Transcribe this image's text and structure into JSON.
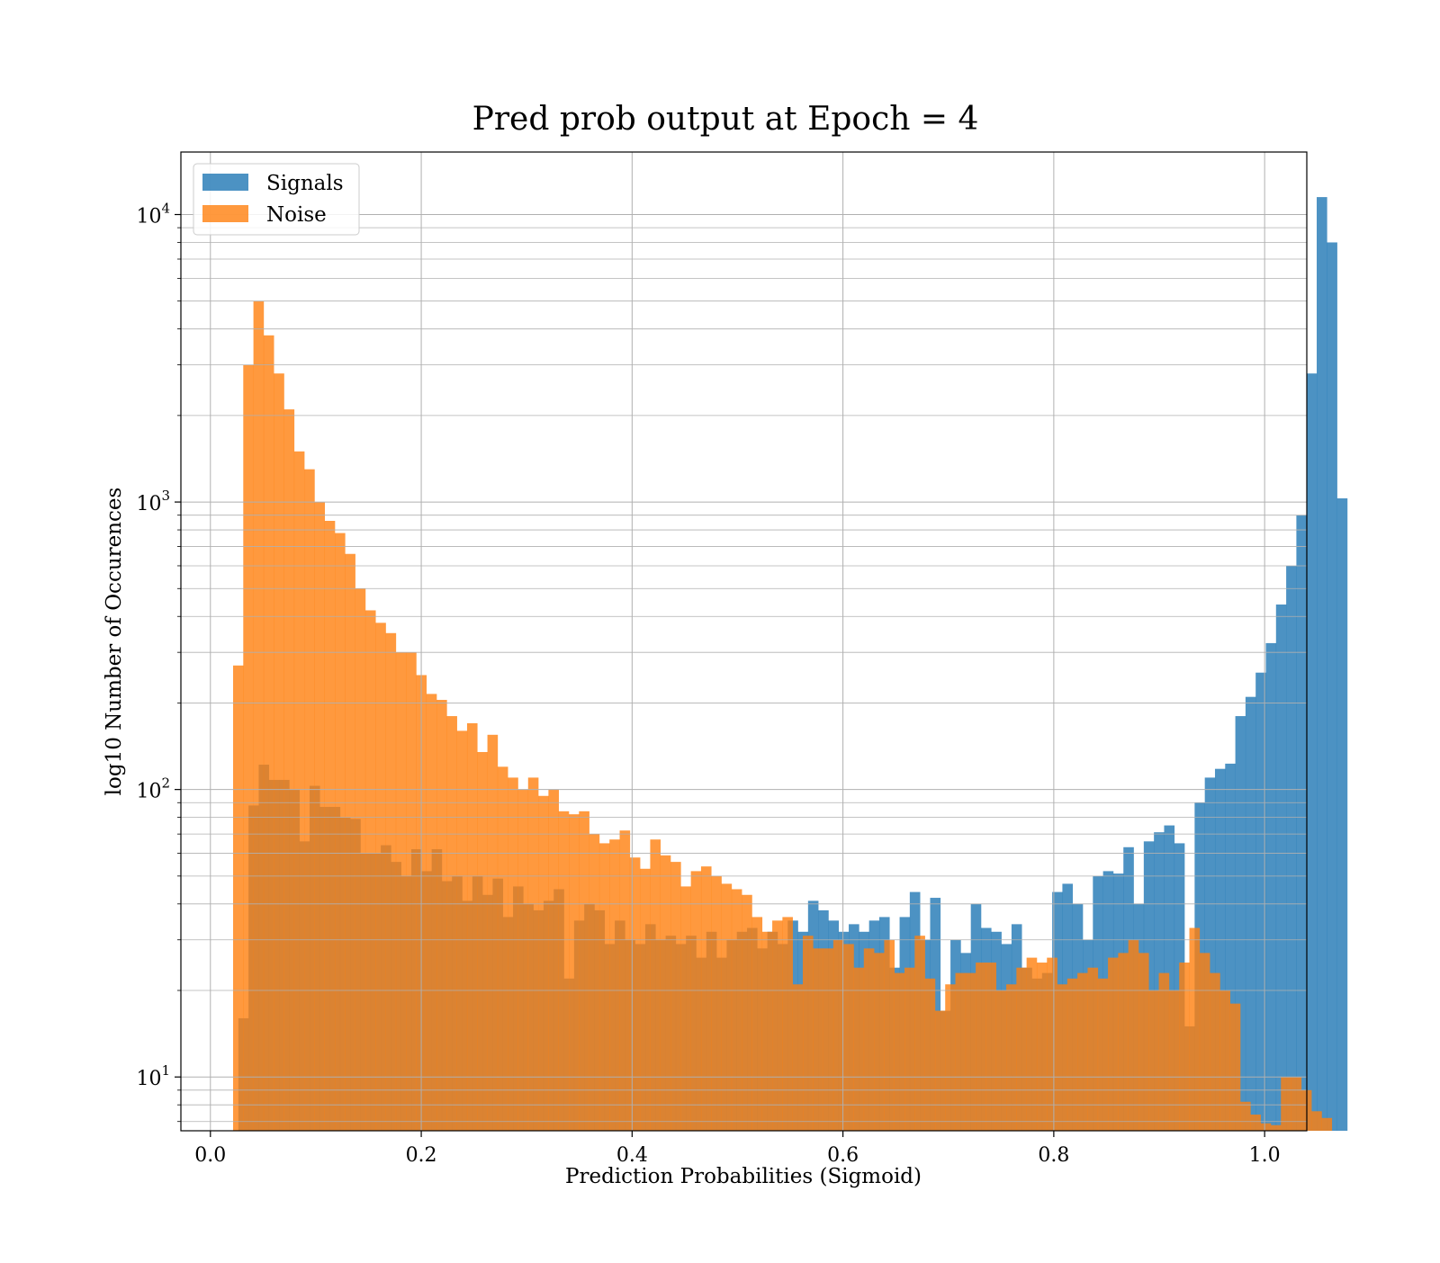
{
  "chart_data": {
    "type": "bar",
    "title": "Pred prob output at Epoch = 4",
    "xlabel": "Prediction Probabilities (Sigmoid)",
    "ylabel": "log10 Number of Occurences",
    "xlim": [
      -0.028,
      1.04
    ],
    "ylim": [
      6.5,
      16500
    ],
    "yscale": "log",
    "grid": true,
    "legend_position": "upper left",
    "xticks": [
      0.0,
      0.2,
      0.4,
      0.6,
      0.8,
      1.0
    ],
    "xtick_labels": [
      "0.0",
      "0.2",
      "0.4",
      "0.6",
      "0.8",
      "1.0"
    ],
    "yticks": [
      10,
      100,
      1000,
      10000
    ],
    "ytick_labels": [
      {
        "base": "10",
        "exp": "1"
      },
      {
        "base": "10",
        "exp": "2"
      },
      {
        "base": "10",
        "exp": "3"
      },
      {
        "base": "10",
        "exp": "4"
      }
    ],
    "series": [
      {
        "name": "Signals",
        "color": "#1f77b4",
        "opacity": 0.8,
        "bin_start": 0.0265,
        "bin_width": 0.00965,
        "values": [
          16,
          88,
          122,
          108,
          108,
          100,
          66,
          103,
          87,
          87,
          80,
          79,
          60,
          60,
          64,
          56,
          50,
          62,
          52,
          62,
          48,
          50,
          41,
          50,
          43,
          49,
          36,
          46,
          40,
          38,
          41,
          45,
          22,
          35,
          40,
          38,
          29,
          35,
          30,
          29,
          34,
          30,
          31,
          29,
          31,
          26,
          32,
          26,
          30,
          32,
          33,
          28,
          32,
          29,
          35,
          32,
          41,
          38,
          35,
          32,
          34,
          32,
          35,
          36,
          24,
          36,
          44,
          30,
          42,
          17,
          30,
          27,
          40,
          33,
          32,
          29,
          34,
          24,
          22,
          23,
          44,
          47,
          40,
          30,
          50,
          52,
          51,
          63,
          40,
          66,
          71,
          75,
          65,
          15,
          90,
          110,
          118,
          123,
          180,
          210,
          255,
          323,
          440,
          600,
          900,
          2800,
          11500,
          8000,
          1030
        ]
      },
      {
        "name": "Noise",
        "color": "#ff7f0e",
        "opacity": 0.8,
        "bin_start": 0.0215,
        "bin_width": 0.00965,
        "values": [
          270,
          3000,
          5000,
          3800,
          2800,
          2100,
          1500,
          1300,
          1000,
          860,
          780,
          660,
          500,
          420,
          380,
          350,
          300,
          300,
          250,
          215,
          205,
          180,
          160,
          170,
          135,
          155,
          120,
          110,
          100,
          110,
          95,
          100,
          84,
          82,
          84,
          70,
          65,
          67,
          72,
          58,
          53,
          67,
          59,
          56,
          46,
          52,
          54,
          50,
          47,
          45,
          43,
          36,
          32,
          35,
          36,
          21,
          31,
          28,
          28,
          30,
          29,
          24,
          28,
          27,
          30,
          23,
          24,
          31,
          22,
          17,
          21,
          23,
          23,
          25,
          25,
          20,
          21,
          24,
          26,
          25,
          26,
          21,
          22,
          23,
          24,
          22,
          26,
          27,
          30,
          27,
          20,
          23,
          20,
          25,
          33,
          27,
          23,
          20,
          18,
          8.2,
          7.4,
          6.9,
          6.8,
          10,
          10,
          9,
          7.6,
          7.2
        ]
      }
    ]
  }
}
